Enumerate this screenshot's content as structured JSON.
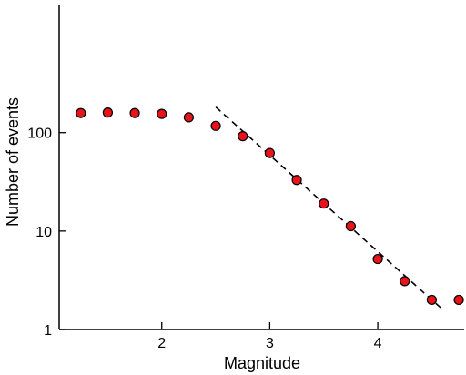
{
  "chart_data": {
    "type": "scatter",
    "xlabel": "Magnitude",
    "ylabel": "Number of events",
    "xlim": [
      1.05,
      4.8
    ],
    "ylim": [
      1,
      2000
    ],
    "yscale": "log",
    "grid": false,
    "legend": "none",
    "marker_color": "#e8141a",
    "x_ticks": [
      {
        "value": 2,
        "label": "2"
      },
      {
        "value": 3,
        "label": "3"
      },
      {
        "value": 4,
        "label": "4"
      }
    ],
    "y_ticks": [
      {
        "value": 1,
        "label": "1"
      },
      {
        "value": 10,
        "label": "10"
      },
      {
        "value": 100,
        "label": "100"
      }
    ],
    "points": {
      "x": [
        1.25,
        1.5,
        1.75,
        2.0,
        2.25,
        2.5,
        2.75,
        3.0,
        3.25,
        3.5,
        3.75,
        4.0,
        4.25,
        4.5,
        4.75
      ],
      "y": [
        158,
        160,
        158,
        155,
        143,
        117,
        92,
        62,
        33,
        19,
        11.2,
        5.2,
        3.1,
        2.0,
        2.0
      ]
    },
    "fit_line": {
      "x": [
        2.5,
        4.6
      ],
      "y": [
        182,
        1.6
      ]
    }
  }
}
